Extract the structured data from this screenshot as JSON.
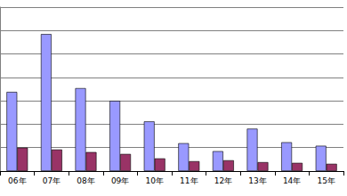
{
  "chart_data": {
    "type": "bar",
    "categories": [
      "06年",
      "07年",
      "08年",
      "09年",
      "10年",
      "11年",
      "12年",
      "13年",
      "14年",
      "15年"
    ],
    "series": [
      {
        "color": "#9999ff",
        "values": [
          3.38,
          5.85,
          3.54,
          3.0,
          2.12,
          1.19,
          0.85,
          1.81,
          1.23,
          1.08
        ]
      },
      {
        "color": "#993366",
        "values": [
          1.0,
          0.92,
          0.81,
          0.73,
          0.54,
          0.42,
          0.46,
          0.38,
          0.35,
          0.31
        ]
      }
    ],
    "ylim": [
      0,
      7
    ],
    "yticks": [
      0,
      1,
      2,
      3,
      4,
      5,
      6,
      7
    ],
    "grid": true,
    "tick_labels": "x"
  }
}
